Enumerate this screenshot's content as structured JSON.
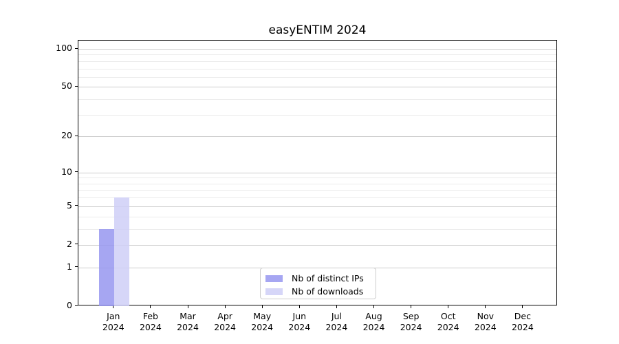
{
  "chart_data": {
    "type": "bar",
    "title": "easyENTIM 2024",
    "x_categories": [
      "Jan",
      "Feb",
      "Mar",
      "Apr",
      "May",
      "Jun",
      "Jul",
      "Aug",
      "Sep",
      "Oct",
      "Nov",
      "Dec"
    ],
    "x_year_label": "2024",
    "series": [
      {
        "name": "Nb of distinct IPs",
        "fill": "#9797f0",
        "values": [
          3,
          0,
          0,
          0,
          0,
          0,
          0,
          0,
          0,
          0,
          0,
          0
        ]
      },
      {
        "name": "Nb of downloads",
        "fill": "#cfcff7",
        "values": [
          6,
          0,
          0,
          0,
          0,
          0,
          0,
          0,
          0,
          0,
          0,
          0
        ]
      }
    ],
    "bar_opacity": 0.85,
    "yscale": "log1p",
    "ylim": [
      0,
      116
    ],
    "y_major_ticks": [
      0,
      1,
      2,
      5,
      10,
      20,
      50,
      100
    ],
    "y_minor_gridlines": [
      3,
      4,
      6,
      7,
      8,
      9,
      30,
      40,
      60,
      70,
      80,
      90
    ],
    "grid": true,
    "legend_position": "lower center",
    "colors": {
      "bar_distinct_ips_rendered": "#a7a7f2",
      "bar_downloads_rendered": "#d6d6f8",
      "major_grid": "#cccccc",
      "minor_grid": "#ebebeb",
      "axis": "#000000",
      "text": "#000000",
      "background": "#ffffff"
    }
  }
}
